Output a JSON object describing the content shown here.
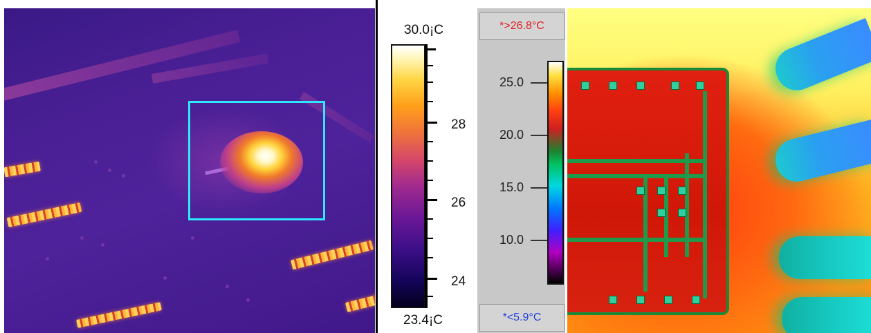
{
  "left_scale": {
    "max_label": "30.0¡C",
    "min_label": "23.4¡C",
    "tick_labels": [
      "28",
      "26",
      "24"
    ],
    "palette": "iron"
  },
  "right_scale": {
    "upper_limit": "*>26.8°C",
    "lower_limit": "*<5.9°C",
    "tick_labels": [
      "25.0",
      "20.0",
      "15.0",
      "10.0"
    ],
    "palette": "rainbow"
  },
  "colors": {
    "roi_box": "#2ee8ff",
    "upper_limit_text": "#e02020",
    "lower_limit_text": "#2040e0",
    "panel_grey": "#c8c8c8"
  },
  "icons": {
    "roi": "rectangle-roi-marker"
  }
}
